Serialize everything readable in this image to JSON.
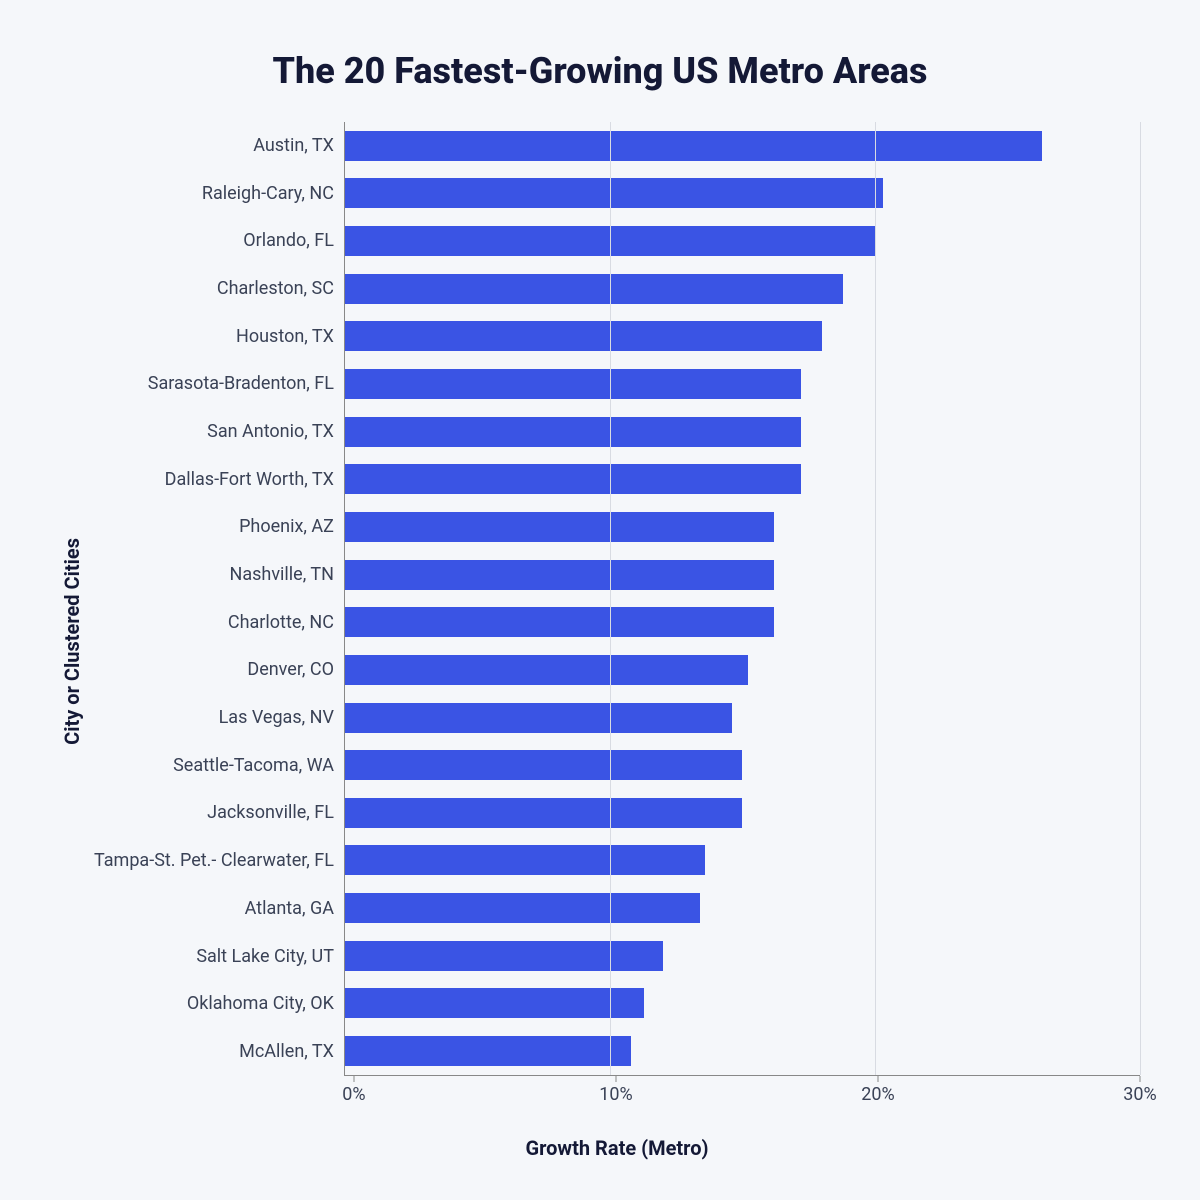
{
  "chart": {
    "type": "bar-horizontal",
    "title": "The 20 Fastest-Growing US Metro Areas",
    "title_fontsize": 36,
    "title_color": "#141936",
    "y_axis_title": "City or Clustered Cities",
    "x_axis_title": "Growth Rate (Metro)",
    "axis_title_fontsize": 20,
    "axis_title_color": "#141936",
    "background_color": "#f5f7fa",
    "bar_color": "#3a54e4",
    "label_color": "#3a4256",
    "label_fontsize": 18,
    "gridline_color": "#d8dbe2",
    "axis_line_color": "#888888",
    "xlim": [
      0,
      30
    ],
    "x_ticks": [
      {
        "value": 0,
        "label": "0%"
      },
      {
        "value": 10,
        "label": "10%"
      },
      {
        "value": 20,
        "label": "20%"
      },
      {
        "value": 30,
        "label": "30%"
      }
    ],
    "bar_height_ratio": 0.72,
    "categories": [
      {
        "label": "Austin, TX",
        "value": 26.3
      },
      {
        "label": "Raleigh-Cary, NC",
        "value": 20.3
      },
      {
        "label": "Orlando, FL",
        "value": 20.0
      },
      {
        "label": "Charleston, SC",
        "value": 18.8
      },
      {
        "label": "Houston, TX",
        "value": 18.0
      },
      {
        "label": "Sarasota-Bradenton, FL",
        "value": 17.2
      },
      {
        "label": "San Antonio, TX",
        "value": 17.2
      },
      {
        "label": "Dallas-Fort Worth, TX",
        "value": 17.2
      },
      {
        "label": "Phoenix, AZ",
        "value": 16.2
      },
      {
        "label": "Nashville, TN",
        "value": 16.2
      },
      {
        "label": "Charlotte, NC",
        "value": 16.2
      },
      {
        "label": "Denver, CO",
        "value": 15.2
      },
      {
        "label": "Las Vegas, NV",
        "value": 14.6
      },
      {
        "label": "Seattle-Tacoma, WA",
        "value": 15.0
      },
      {
        "label": "Jacksonville, FL",
        "value": 15.0
      },
      {
        "label": "Tampa-St. Pet.- Clearwater, FL",
        "value": 13.6
      },
      {
        "label": "Atlanta, GA",
        "value": 13.4
      },
      {
        "label": "Salt Lake City, UT",
        "value": 12.0
      },
      {
        "label": "Oklahoma City, OK",
        "value": 11.3
      },
      {
        "label": "McAllen, TX",
        "value": 10.8
      }
    ]
  }
}
